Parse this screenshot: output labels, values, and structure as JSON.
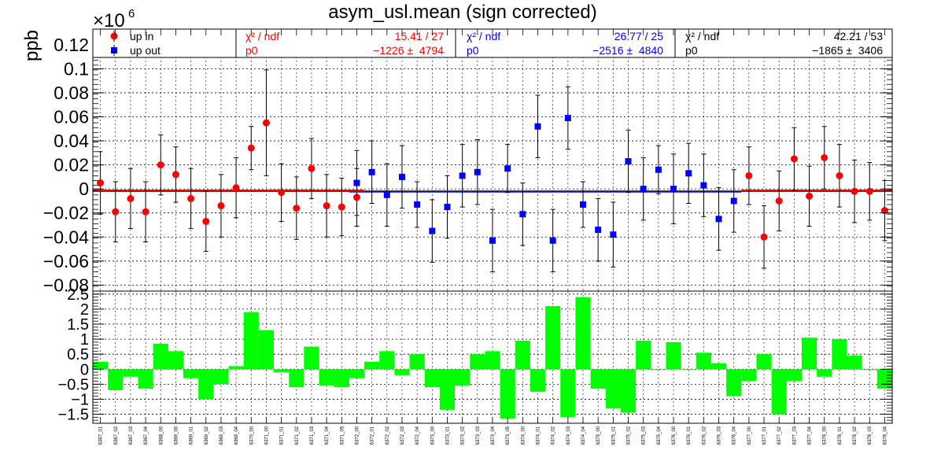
{
  "colors": {
    "up_in": "#ff0000",
    "up_out": "#0000ff",
    "combined": "#000000",
    "ratio_bar": "#00ff00",
    "fit_in": "#ff0000",
    "fit_out": "#0000ff",
    "grid": "#000000"
  },
  "stats": {
    "in": {
      "chi2_label": "χ² / ndf",
      "chi2_value": "15.41 / 27",
      "p0_label": "p0",
      "p0_value": "−1226 ±  4794"
    },
    "out": {
      "chi2_label": "χ² / ndf",
      "chi2_value": "26.77 / 25",
      "p0_label": "p0",
      "p0_value": "−2516 ±  4840"
    },
    "all": {
      "chi2_label": "χ² / ndf",
      "chi2_value": "42.21 / 53",
      "p0_label": "p0",
      "p0_value": "−1865 ±  3406"
    }
  },
  "chart_data": [
    {
      "type": "scatter",
      "title": "asym_usl.mean (sign corrected)",
      "ylabel": "ppb",
      "y_multiplier": "×10",
      "y_multiplier_exp": "6",
      "ylim": [
        -0.085,
        0.133
      ],
      "yticks": [
        -0.08,
        -0.06,
        -0.04,
        -0.02,
        0,
        0.02,
        0.04,
        0.06,
        0.08,
        0.1,
        0.12
      ],
      "yticklabels": [
        "−0.08",
        "−0.06",
        "−0.04",
        "−0.02",
        "0",
        "0.02",
        "0.04",
        "0.06",
        "0.08",
        "0.1",
        "0.12"
      ],
      "grid": true,
      "legend_position": "top-left",
      "categories": [
        "6367_01",
        "6367_02",
        "6367_03",
        "6367_04",
        "6368_00",
        "6369_00",
        "6369_01",
        "6369_02",
        "6369_03",
        "6369_04",
        "6370_00",
        "6371_00",
        "6371_01",
        "6371_02",
        "6371_03",
        "6371_04",
        "6371_05",
        "6372_00",
        "6372_01",
        "6372_02",
        "6372_03",
        "6372_04",
        "6373_00",
        "6373_01",
        "6373_02",
        "6373_03",
        "6373_04",
        "6373_05",
        "6374_00",
        "6374_01",
        "6374_02",
        "6374_03",
        "6374_04",
        "6375_00",
        "6375_01",
        "6375_02",
        "6375_03",
        "6375_04",
        "6376_00",
        "6376_01",
        "6376_02",
        "6376_03",
        "6376_04",
        "6377_00",
        "6377_01",
        "6377_02",
        "6377_03",
        "6377_04",
        "6378_00",
        "6378_01",
        "6378_02",
        "6378_03",
        "6378_04"
      ],
      "series": [
        {
          "name": "up in",
          "marker": "circle",
          "points": [
            {
              "i": 0,
              "y": 0.005,
              "err": 0.026
            },
            {
              "i": 1,
              "y": -0.019,
              "err": 0.025
            },
            {
              "i": 2,
              "y": -0.008,
              "err": 0.025
            },
            {
              "i": 3,
              "y": -0.019,
              "err": 0.025
            },
            {
              "i": 4,
              "y": 0.02,
              "err": 0.025
            },
            {
              "i": 5,
              "y": 0.012,
              "err": 0.023
            },
            {
              "i": 6,
              "y": -0.008,
              "err": 0.025
            },
            {
              "i": 7,
              "y": -0.027,
              "err": 0.025
            },
            {
              "i": 8,
              "y": -0.014,
              "err": 0.026
            },
            {
              "i": 9,
              "y": 0.001,
              "err": 0.025
            },
            {
              "i": 10,
              "y": 0.034,
              "err": 0.018
            },
            {
              "i": 11,
              "y": 0.055,
              "err": 0.044
            },
            {
              "i": 12,
              "y": -0.003,
              "err": 0.024
            },
            {
              "i": 13,
              "y": -0.016,
              "err": 0.026
            },
            {
              "i": 14,
              "y": 0.017,
              "err": 0.025
            },
            {
              "i": 15,
              "y": -0.014,
              "err": 0.026
            },
            {
              "i": 16,
              "y": -0.015,
              "err": 0.024
            },
            {
              "i": 17,
              "y": -0.007,
              "err": 0.024
            },
            {
              "i": 43,
              "y": 0.011,
              "err": 0.024
            },
            {
              "i": 44,
              "y": -0.04,
              "err": 0.026
            },
            {
              "i": 45,
              "y": -0.01,
              "err": 0.025
            },
            {
              "i": 46,
              "y": 0.025,
              "err": 0.026
            },
            {
              "i": 47,
              "y": -0.006,
              "err": 0.025
            },
            {
              "i": 48,
              "y": 0.026,
              "err": 0.026
            },
            {
              "i": 49,
              "y": 0.011,
              "err": 0.026
            },
            {
              "i": 50,
              "y": -0.002,
              "err": 0.026
            },
            {
              "i": 51,
              "y": -0.002,
              "err": 0.024
            },
            {
              "i": 52,
              "y": -0.018,
              "err": 0.025
            }
          ]
        },
        {
          "name": "up out",
          "marker": "square",
          "points": [
            {
              "i": 17,
              "y": 0.005,
              "err": 0.027
            },
            {
              "i": 18,
              "y": 0.014,
              "err": 0.026
            },
            {
              "i": 19,
              "y": -0.005,
              "err": 0.026
            },
            {
              "i": 20,
              "y": 0.01,
              "err": 0.026
            },
            {
              "i": 21,
              "y": -0.013,
              "err": 0.019
            },
            {
              "i": 22,
              "y": -0.035,
              "err": 0.026
            },
            {
              "i": 23,
              "y": -0.015,
              "err": 0.026
            },
            {
              "i": 24,
              "y": 0.011,
              "err": 0.026
            },
            {
              "i": 25,
              "y": 0.014,
              "err": 0.027
            },
            {
              "i": 26,
              "y": -0.043,
              "err": 0.026
            },
            {
              "i": 27,
              "y": 0.017,
              "err": 0.02
            },
            {
              "i": 28,
              "y": -0.021,
              "err": 0.026
            },
            {
              "i": 29,
              "y": 0.052,
              "err": 0.026
            },
            {
              "i": 30,
              "y": -0.043,
              "err": 0.026
            },
            {
              "i": 31,
              "y": 0.059,
              "err": 0.026
            },
            {
              "i": 32,
              "y": -0.013,
              "err": 0.019
            },
            {
              "i": 33,
              "y": -0.034,
              "err": 0.026
            },
            {
              "i": 34,
              "y": -0.038,
              "err": 0.027
            },
            {
              "i": 35,
              "y": 0.023,
              "err": 0.026
            },
            {
              "i": 36,
              "y": 0.0,
              "err": 0.026
            },
            {
              "i": 37,
              "y": 0.016,
              "err": 0.02
            },
            {
              "i": 38,
              "y": 0.0,
              "err": 0.029
            },
            {
              "i": 39,
              "y": 0.013,
              "err": 0.025
            },
            {
              "i": 40,
              "y": 0.003,
              "err": 0.026
            },
            {
              "i": 41,
              "y": -0.025,
              "err": 0.026
            },
            {
              "i": 42,
              "y": -0.01,
              "err": 0.026
            }
          ]
        }
      ],
      "fits": [
        {
          "series": "up in",
          "value": -0.001226
        },
        {
          "series": "up out",
          "value": -0.002516
        },
        {
          "series": "all",
          "value": -0.001865
        }
      ]
    },
    {
      "type": "bar",
      "ylim": [
        -1.8,
        2.6
      ],
      "yticks": [
        -1.5,
        -1,
        -0.5,
        0,
        0.5,
        1,
        1.5,
        2,
        2.5
      ],
      "yticklabels": [
        "−1.5",
        "−1",
        "−0.5",
        "0",
        "0.5",
        "1",
        "1.5",
        "2",
        "2.5"
      ],
      "grid": true,
      "values": [
        0.25,
        -0.7,
        -0.25,
        -0.65,
        0.85,
        0.6,
        -0.3,
        -1.0,
        -0.5,
        0.1,
        1.9,
        1.3,
        -0.1,
        -0.6,
        0.75,
        -0.55,
        -0.6,
        -0.3,
        0.25,
        0.6,
        -0.2,
        0.5,
        -0.6,
        -1.35,
        -0.55,
        0.5,
        0.6,
        -1.65,
        0.95,
        -0.75,
        2.1,
        -1.6,
        2.4,
        -0.65,
        -1.3,
        -1.45,
        0.95,
        0.0,
        0.9,
        0.0,
        0.55,
        0.2,
        -0.9,
        -0.4,
        0.5,
        -1.5,
        -0.4,
        1.05,
        -0.25,
        1.0,
        0.45,
        0.0,
        -0.65
      ]
    }
  ]
}
